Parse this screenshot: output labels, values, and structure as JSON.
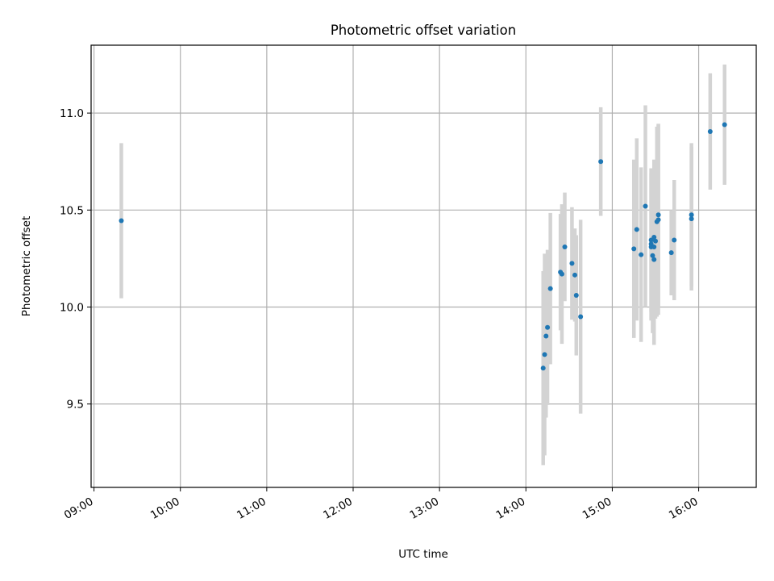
{
  "chart_data": {
    "type": "scatter",
    "title": "Photometric offset variation",
    "xlabel": "UTC time",
    "ylabel": "Photometric offset",
    "x_is_time": true,
    "xlim": [
      "08:58",
      "16:40"
    ],
    "ylim": [
      9.07,
      11.35
    ],
    "x_ticks": [
      "09:00",
      "10:00",
      "11:00",
      "12:00",
      "13:00",
      "14:00",
      "15:00",
      "16:00"
    ],
    "y_ticks": [
      "9.5",
      "10.0",
      "10.5",
      "11.0"
    ],
    "grid": true,
    "marker_color": "#1f77b4",
    "errorbar_color": "#d3d3d3",
    "points": [
      {
        "x": "09:19",
        "y": 10.445,
        "yerr": 0.4
      },
      {
        "x": "14:12",
        "y": 9.685,
        "yerr": 0.5
      },
      {
        "x": "14:13",
        "y": 9.755,
        "yerr": 0.52
      },
      {
        "x": "14:14",
        "y": 9.85,
        "yerr": 0.42
      },
      {
        "x": "14:15",
        "y": 9.895,
        "yerr": 0.4
      },
      {
        "x": "14:17",
        "y": 10.095,
        "yerr": 0.39
      },
      {
        "x": "14:24",
        "y": 10.18,
        "yerr": 0.3
      },
      {
        "x": "14:25",
        "y": 10.17,
        "yerr": 0.36
      },
      {
        "x": "14:27",
        "y": 10.31,
        "yerr": 0.28
      },
      {
        "x": "14:32",
        "y": 10.225,
        "yerr": 0.29
      },
      {
        "x": "14:34",
        "y": 10.165,
        "yerr": 0.24
      },
      {
        "x": "14:35",
        "y": 10.06,
        "yerr": 0.31
      },
      {
        "x": "14:38",
        "y": 9.95,
        "yerr": 0.5
      },
      {
        "x": "14:52",
        "y": 10.75,
        "yerr": 0.28
      },
      {
        "x": "15:15",
        "y": 10.3,
        "yerr": 0.46
      },
      {
        "x": "15:17",
        "y": 10.4,
        "yerr": 0.47
      },
      {
        "x": "15:20",
        "y": 10.27,
        "yerr": 0.45
      },
      {
        "x": "15:23",
        "y": 10.52,
        "yerr": 0.52
      },
      {
        "x": "15:27",
        "y": 10.31,
        "yerr": 0.38
      },
      {
        "x": "15:27",
        "y": 10.325,
        "yerr": 0.39
      },
      {
        "x": "15:27",
        "y": 10.345,
        "yerr": 0.37
      },
      {
        "x": "15:28",
        "y": 10.265,
        "yerr": 0.4
      },
      {
        "x": "15:29",
        "y": 10.36,
        "yerr": 0.4
      },
      {
        "x": "15:29",
        "y": 10.31,
        "yerr": 0.38
      },
      {
        "x": "15:29",
        "y": 10.245,
        "yerr": 0.44
      },
      {
        "x": "15:30",
        "y": 10.34,
        "yerr": 0.4
      },
      {
        "x": "15:31",
        "y": 10.44,
        "yerr": 0.49
      },
      {
        "x": "15:32",
        "y": 10.45,
        "yerr": 0.49
      },
      {
        "x": "15:32",
        "y": 10.475,
        "yerr": 0.47
      },
      {
        "x": "15:41",
        "y": 10.28,
        "yerr": 0.22
      },
      {
        "x": "15:43",
        "y": 10.345,
        "yerr": 0.31
      },
      {
        "x": "15:55",
        "y": 10.455,
        "yerr": 0.37
      },
      {
        "x": "15:55",
        "y": 10.475,
        "yerr": 0.37
      },
      {
        "x": "16:08",
        "y": 10.905,
        "yerr": 0.3
      },
      {
        "x": "16:18",
        "y": 10.94,
        "yerr": 0.31
      }
    ]
  }
}
